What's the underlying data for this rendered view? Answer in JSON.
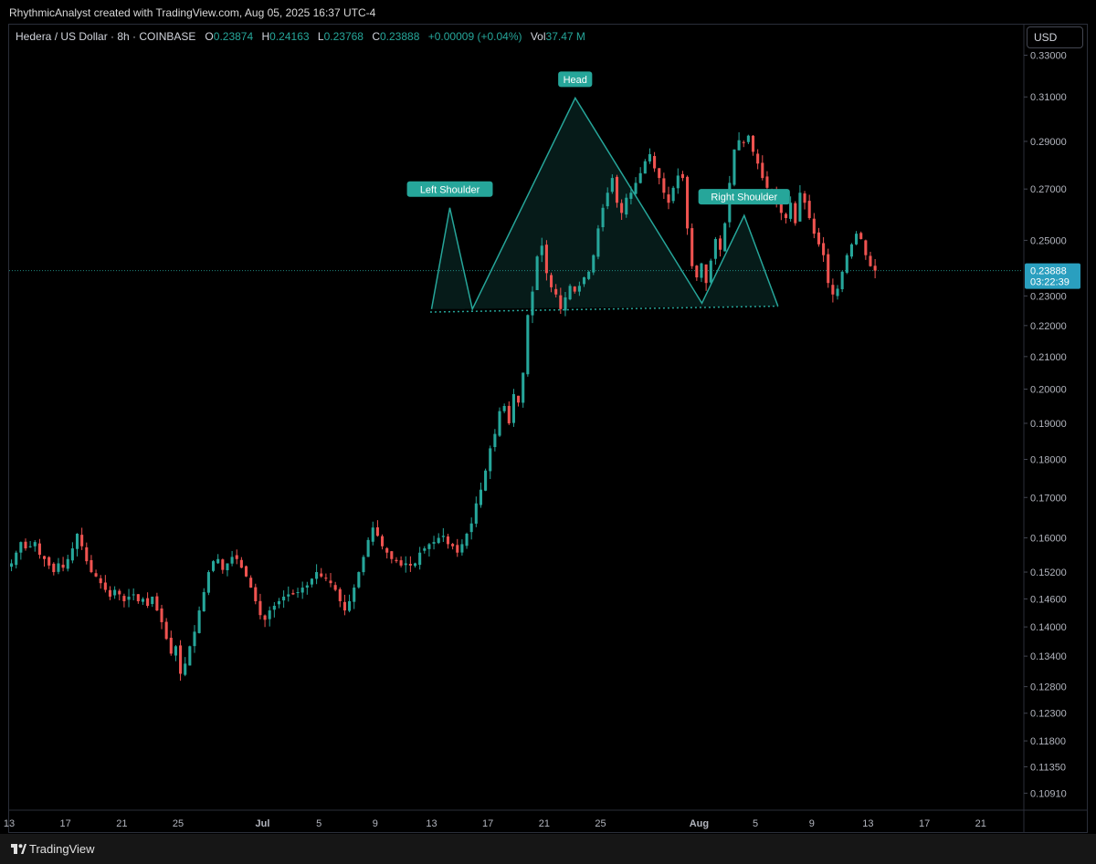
{
  "header": {
    "credit": "RhythmicAnalyst created with TradingView.com, Aug 05, 2025 16:37 UTC-4"
  },
  "legend": {
    "symbol": "Hedera / US Dollar · 8h · COINBASE",
    "open_label": "O",
    "open": "0.23874",
    "high_label": "H",
    "high": "0.24163",
    "low_label": "L",
    "low": "0.23768",
    "close_label": "C",
    "close": "0.23888",
    "change": "+0.00009 (+0.04%)",
    "vol_label": "Vol",
    "vol": "37.47 M"
  },
  "currency_button": "USD",
  "footer": {
    "brand": "TradingView",
    "brand_icon": "tradingview-logo-icon"
  },
  "colors": {
    "up": "#26a69a",
    "down": "#ef5350",
    "pattern": "#26a69a",
    "price_tag": "#2a9fbf",
    "background": "#000000"
  },
  "chart_data": {
    "type": "candlestick",
    "title": "Hedera / US Dollar · 8h · COINBASE",
    "y_scale": "log",
    "ylim": [
      0.1065,
      0.3455
    ],
    "y_ticks": [
      "0.33000",
      "0.31000",
      "0.29000",
      "0.27000",
      "0.25000",
      "0.23000",
      "0.22000",
      "0.21000",
      "0.20000",
      "0.19000",
      "0.18000",
      "0.17000",
      "0.16000",
      "0.15200",
      "0.14600",
      "0.14000",
      "0.13400",
      "0.12800",
      "0.12300",
      "0.11800",
      "0.11350",
      "0.10910"
    ],
    "x_ticks": [
      {
        "label": "13",
        "day": 0
      },
      {
        "label": "17",
        "day": 4
      },
      {
        "label": "21",
        "day": 8
      },
      {
        "label": "25",
        "day": 12
      },
      {
        "label": "Jul",
        "day": 18,
        "bold": true
      },
      {
        "label": "5",
        "day": 22
      },
      {
        "label": "9",
        "day": 26
      },
      {
        "label": "13",
        "day": 30
      },
      {
        "label": "17",
        "day": 34
      },
      {
        "label": "21",
        "day": 38
      },
      {
        "label": "25",
        "day": 42
      },
      {
        "label": "Aug",
        "day": 49,
        "bold": true
      },
      {
        "label": "5",
        "day": 53
      },
      {
        "label": "9",
        "day": 57
      },
      {
        "label": "13",
        "day": 61
      },
      {
        "label": "17",
        "day": 65
      },
      {
        "label": "21",
        "day": 69
      }
    ],
    "x_domain_days": [
      0,
      72
    ],
    "x_domain_start": "Jun 13",
    "last_price": "0.23888",
    "countdown": "03:22:39",
    "candles_per_day": 3,
    "closes": [
      0.154,
      0.1565,
      0.159,
      0.1575,
      0.158,
      0.159,
      0.156,
      0.155,
      0.1535,
      0.152,
      0.154,
      0.153,
      0.155,
      0.1575,
      0.161,
      0.158,
      0.1545,
      0.152,
      0.151,
      0.1495,
      0.148,
      0.1465,
      0.148,
      0.147,
      0.1455,
      0.1465,
      0.147,
      0.1455,
      0.146,
      0.1445,
      0.1465,
      0.1435,
      0.141,
      0.1375,
      0.1345,
      0.136,
      0.1305,
      0.1325,
      0.136,
      0.139,
      0.1435,
      0.1475,
      0.152,
      0.1545,
      0.155,
      0.1525,
      0.154,
      0.1555,
      0.155,
      0.153,
      0.151,
      0.1485,
      0.1455,
      0.1425,
      0.1415,
      0.1435,
      0.1445,
      0.1455,
      0.1465,
      0.147,
      0.147,
      0.1475,
      0.1485,
      0.149,
      0.1505,
      0.152,
      0.151,
      0.1505,
      0.1495,
      0.148,
      0.1455,
      0.1435,
      0.1455,
      0.1485,
      0.152,
      0.1555,
      0.1595,
      0.1625,
      0.1605,
      0.158,
      0.1565,
      0.155,
      0.1545,
      0.1535,
      0.154,
      0.1535,
      0.154,
      0.1565,
      0.1575,
      0.1585,
      0.159,
      0.16,
      0.1605,
      0.1585,
      0.158,
      0.1565,
      0.1585,
      0.161,
      0.1635,
      0.1685,
      0.172,
      0.177,
      0.183,
      0.187,
      0.1935,
      0.195,
      0.19,
      0.1985,
      0.196,
      0.205,
      0.2235,
      0.2315,
      0.244,
      0.248,
      0.238,
      0.233,
      0.2305,
      0.2255,
      0.2295,
      0.2335,
      0.2315,
      0.2335,
      0.2365,
      0.2385,
      0.2445,
      0.2545,
      0.2625,
      0.2685,
      0.2745,
      0.2645,
      0.2605,
      0.2665,
      0.2685,
      0.2725,
      0.2765,
      0.2815,
      0.2845,
      0.2785,
      0.2745,
      0.2685,
      0.2645,
      0.2705,
      0.2755,
      0.2745,
      0.2545,
      0.2405,
      0.2365,
      0.2415,
      0.2345,
      0.2425,
      0.2505,
      0.2465,
      0.2565,
      0.2725,
      0.2865,
      0.2905,
      0.2895,
      0.2925,
      0.2855,
      0.2805,
      0.2745,
      0.2705,
      0.2685,
      0.2645,
      0.2605,
      0.2585,
      0.2645,
      0.2565,
      0.2685,
      0.2645,
      0.2585,
      0.2525,
      0.2485,
      0.2445,
      0.2345,
      0.2305,
      0.2325,
      0.2385,
      0.2445,
      0.2485,
      0.2525,
      0.2505,
      0.2445,
      0.2405,
      0.2389
    ],
    "annotations": [
      {
        "label": "Left Shoulder",
        "day": 31.3,
        "price": 0.2625
      },
      {
        "label": "Head",
        "day": 40.2,
        "price": 0.3095
      },
      {
        "label": "Right Shoulder",
        "day": 52.2,
        "price": 0.2595
      }
    ],
    "pattern_outline": [
      {
        "day": 30.0,
        "price": 0.2255
      },
      {
        "day": 31.3,
        "price": 0.2625
      },
      {
        "day": 32.9,
        "price": 0.2255
      },
      {
        "day": 40.2,
        "price": 0.3095
      },
      {
        "day": 49.2,
        "price": 0.2275
      },
      {
        "day": 52.2,
        "price": 0.2595
      },
      {
        "day": 54.6,
        "price": 0.2265
      }
    ],
    "neckline": [
      {
        "day": 29.9,
        "price": 0.2245
      },
      {
        "day": 54.6,
        "price": 0.2265
      }
    ]
  }
}
